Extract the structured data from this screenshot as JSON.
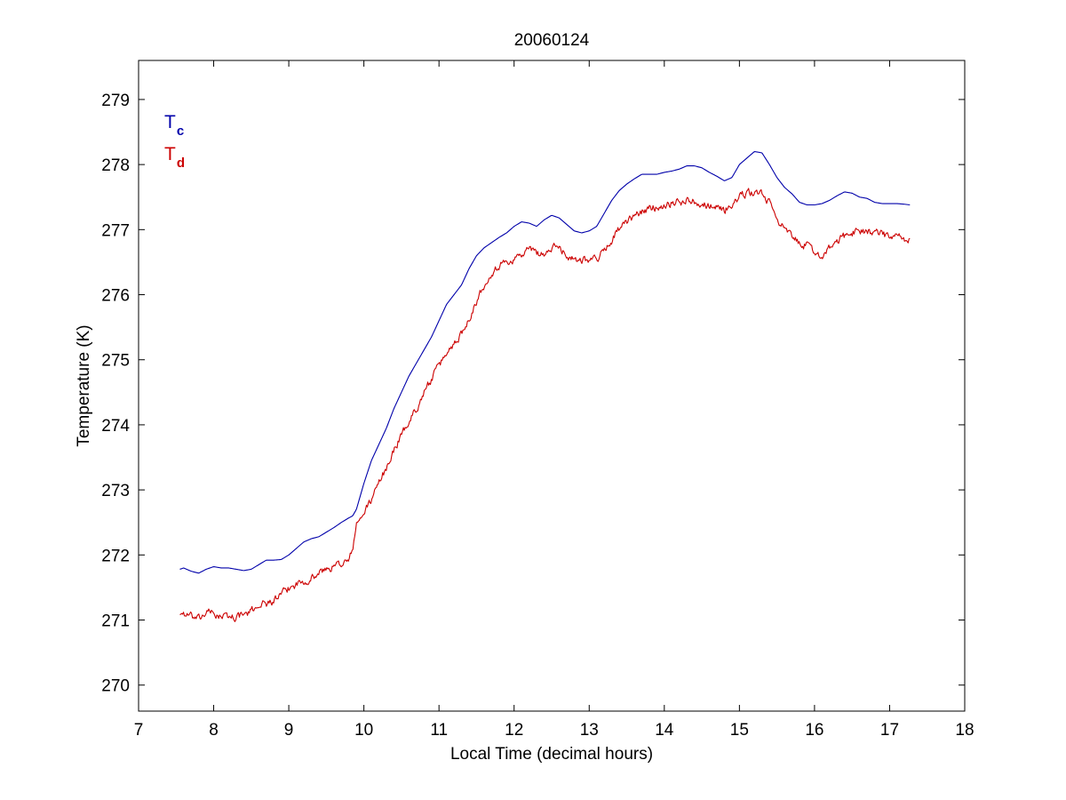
{
  "chart_data": {
    "type": "line",
    "title": "20060124",
    "xlabel": "Local Time (decimal hours)",
    "ylabel": "Temperature (K)",
    "xlim": [
      7,
      18
    ],
    "ylim": [
      269.6,
      279.6
    ],
    "xticks": [
      7,
      8,
      9,
      10,
      11,
      12,
      13,
      14,
      15,
      16,
      17,
      18
    ],
    "yticks": [
      270,
      271,
      272,
      273,
      274,
      275,
      276,
      277,
      278,
      279
    ],
    "grid": false,
    "legend_position": "top-left",
    "series": [
      {
        "name_main": "T",
        "name_sub": "c",
        "color": "#0000aa",
        "noise": 0.0,
        "x": [
          7.55,
          7.6,
          7.7,
          7.8,
          7.9,
          8.0,
          8.1,
          8.2,
          8.3,
          8.4,
          8.5,
          8.6,
          8.7,
          8.8,
          8.9,
          9.0,
          9.1,
          9.2,
          9.3,
          9.4,
          9.5,
          9.6,
          9.7,
          9.8,
          9.85,
          9.9,
          10.0,
          10.1,
          10.2,
          10.3,
          10.4,
          10.5,
          10.6,
          10.7,
          10.8,
          10.9,
          11.0,
          11.1,
          11.2,
          11.3,
          11.4,
          11.5,
          11.6,
          11.7,
          11.8,
          11.9,
          12.0,
          12.1,
          12.2,
          12.3,
          12.4,
          12.5,
          12.6,
          12.7,
          12.8,
          12.9,
          13.0,
          13.1,
          13.2,
          13.3,
          13.4,
          13.5,
          13.6,
          13.7,
          13.8,
          13.9,
          14.0,
          14.1,
          14.2,
          14.3,
          14.4,
          14.5,
          14.6,
          14.7,
          14.8,
          14.9,
          15.0,
          15.1,
          15.2,
          15.3,
          15.4,
          15.5,
          15.6,
          15.7,
          15.8,
          15.9,
          16.0,
          16.1,
          16.2,
          16.3,
          16.4,
          16.5,
          16.6,
          16.7,
          16.8,
          16.9,
          17.0,
          17.1,
          17.2,
          17.27
        ],
        "y": [
          271.78,
          271.8,
          271.75,
          271.72,
          271.78,
          271.82,
          271.8,
          271.8,
          271.78,
          271.76,
          271.78,
          271.85,
          271.92,
          271.92,
          271.93,
          272.0,
          272.1,
          272.2,
          272.25,
          272.28,
          272.35,
          272.42,
          272.5,
          272.57,
          272.6,
          272.7,
          273.1,
          273.45,
          273.7,
          273.95,
          274.25,
          274.5,
          274.75,
          274.95,
          275.15,
          275.35,
          275.6,
          275.85,
          276.0,
          276.15,
          276.4,
          276.6,
          276.72,
          276.8,
          276.88,
          276.95,
          277.05,
          277.12,
          277.1,
          277.05,
          277.15,
          277.22,
          277.18,
          277.08,
          276.98,
          276.95,
          276.98,
          277.05,
          277.25,
          277.45,
          277.6,
          277.7,
          277.78,
          277.85,
          277.85,
          277.85,
          277.88,
          277.9,
          277.93,
          277.98,
          277.98,
          277.95,
          277.88,
          277.82,
          277.75,
          277.8,
          278.0,
          278.1,
          278.2,
          278.18,
          278.0,
          277.8,
          277.65,
          277.55,
          277.42,
          277.38,
          277.38,
          277.4,
          277.45,
          277.52,
          277.58,
          277.56,
          277.5,
          277.48,
          277.42,
          277.4,
          277.4,
          277.4,
          277.39,
          277.38
        ]
      },
      {
        "name_main": "T",
        "name_sub": "d",
        "color": "#cc0000",
        "noise": 0.07,
        "x": [
          7.55,
          7.6,
          7.7,
          7.8,
          7.9,
          8.0,
          8.1,
          8.2,
          8.3,
          8.4,
          8.5,
          8.6,
          8.7,
          8.8,
          8.9,
          9.0,
          9.1,
          9.2,
          9.3,
          9.4,
          9.5,
          9.6,
          9.7,
          9.8,
          9.85,
          9.9,
          10.0,
          10.1,
          10.2,
          10.3,
          10.4,
          10.5,
          10.6,
          10.7,
          10.8,
          10.9,
          11.0,
          11.1,
          11.2,
          11.3,
          11.4,
          11.5,
          11.6,
          11.7,
          11.8,
          11.9,
          12.0,
          12.1,
          12.2,
          12.3,
          12.4,
          12.5,
          12.6,
          12.7,
          12.8,
          12.9,
          13.0,
          13.1,
          13.2,
          13.3,
          13.4,
          13.5,
          13.6,
          13.7,
          13.8,
          13.9,
          14.0,
          14.1,
          14.2,
          14.3,
          14.4,
          14.5,
          14.6,
          14.7,
          14.8,
          14.9,
          15.0,
          15.1,
          15.2,
          15.3,
          15.4,
          15.5,
          15.6,
          15.7,
          15.8,
          15.9,
          16.0,
          16.1,
          16.2,
          16.3,
          16.4,
          16.5,
          16.6,
          16.7,
          16.8,
          16.9,
          17.0,
          17.1,
          17.2,
          17.27
        ],
        "y": [
          271.1,
          271.1,
          271.05,
          271.0,
          271.12,
          271.1,
          271.05,
          271.05,
          271.05,
          271.08,
          271.12,
          271.25,
          271.25,
          271.3,
          271.38,
          271.48,
          271.55,
          271.6,
          271.65,
          271.72,
          271.78,
          271.82,
          271.88,
          271.9,
          272.1,
          272.45,
          272.65,
          272.85,
          273.1,
          273.35,
          273.6,
          273.85,
          274.05,
          274.25,
          274.5,
          274.7,
          274.9,
          275.1,
          275.25,
          275.4,
          275.65,
          275.9,
          276.15,
          276.35,
          276.45,
          276.5,
          276.55,
          276.62,
          276.7,
          276.65,
          276.62,
          276.7,
          276.75,
          276.6,
          276.55,
          276.55,
          276.55,
          276.55,
          276.68,
          276.85,
          277.02,
          277.1,
          277.2,
          277.28,
          277.32,
          277.35,
          277.38,
          277.42,
          277.42,
          277.45,
          277.45,
          277.4,
          277.38,
          277.35,
          277.3,
          277.38,
          277.5,
          277.55,
          277.58,
          277.55,
          277.4,
          277.2,
          277.0,
          276.88,
          276.8,
          276.75,
          276.65,
          276.6,
          276.7,
          276.82,
          276.9,
          276.95,
          277.0,
          276.98,
          276.95,
          276.92,
          276.9,
          276.88,
          276.85,
          276.85
        ]
      }
    ]
  }
}
